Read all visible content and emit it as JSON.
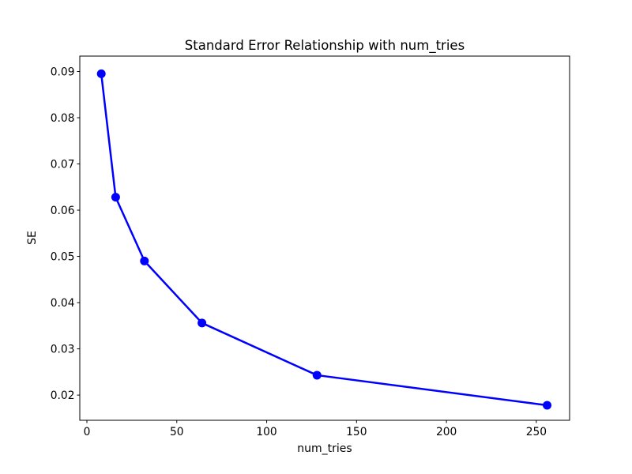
{
  "chart_data": {
    "type": "line",
    "title": "Standard Error Relationship with num_tries",
    "xlabel": "num_tries",
    "ylabel": "SE",
    "x": [
      8,
      16,
      32,
      64,
      128,
      256
    ],
    "y": [
      0.0895,
      0.0628,
      0.049,
      0.0356,
      0.0243,
      0.0178
    ],
    "line_color": "#0000ff",
    "marker": "circle",
    "marker_radius": 5.5,
    "line_width": 2.5,
    "xlim": [
      -3.95,
      268.5
    ],
    "ylim": [
      0.01455,
      0.09333
    ],
    "x_ticks": {
      "values": [
        0,
        50,
        100,
        150,
        200,
        250
      ],
      "labels": [
        "0",
        "50",
        "100",
        "150",
        "200",
        "250"
      ]
    },
    "y_ticks": {
      "values": [
        0.02,
        0.03,
        0.04,
        0.05,
        0.06,
        0.07,
        0.08,
        0.09
      ],
      "labels": [
        "0.02",
        "0.03",
        "0.04",
        "0.05",
        "0.06",
        "0.07",
        "0.08",
        "0.09"
      ]
    },
    "grid": false,
    "legend": false,
    "background_color": "#ffffff",
    "spine_color": "#000000"
  }
}
